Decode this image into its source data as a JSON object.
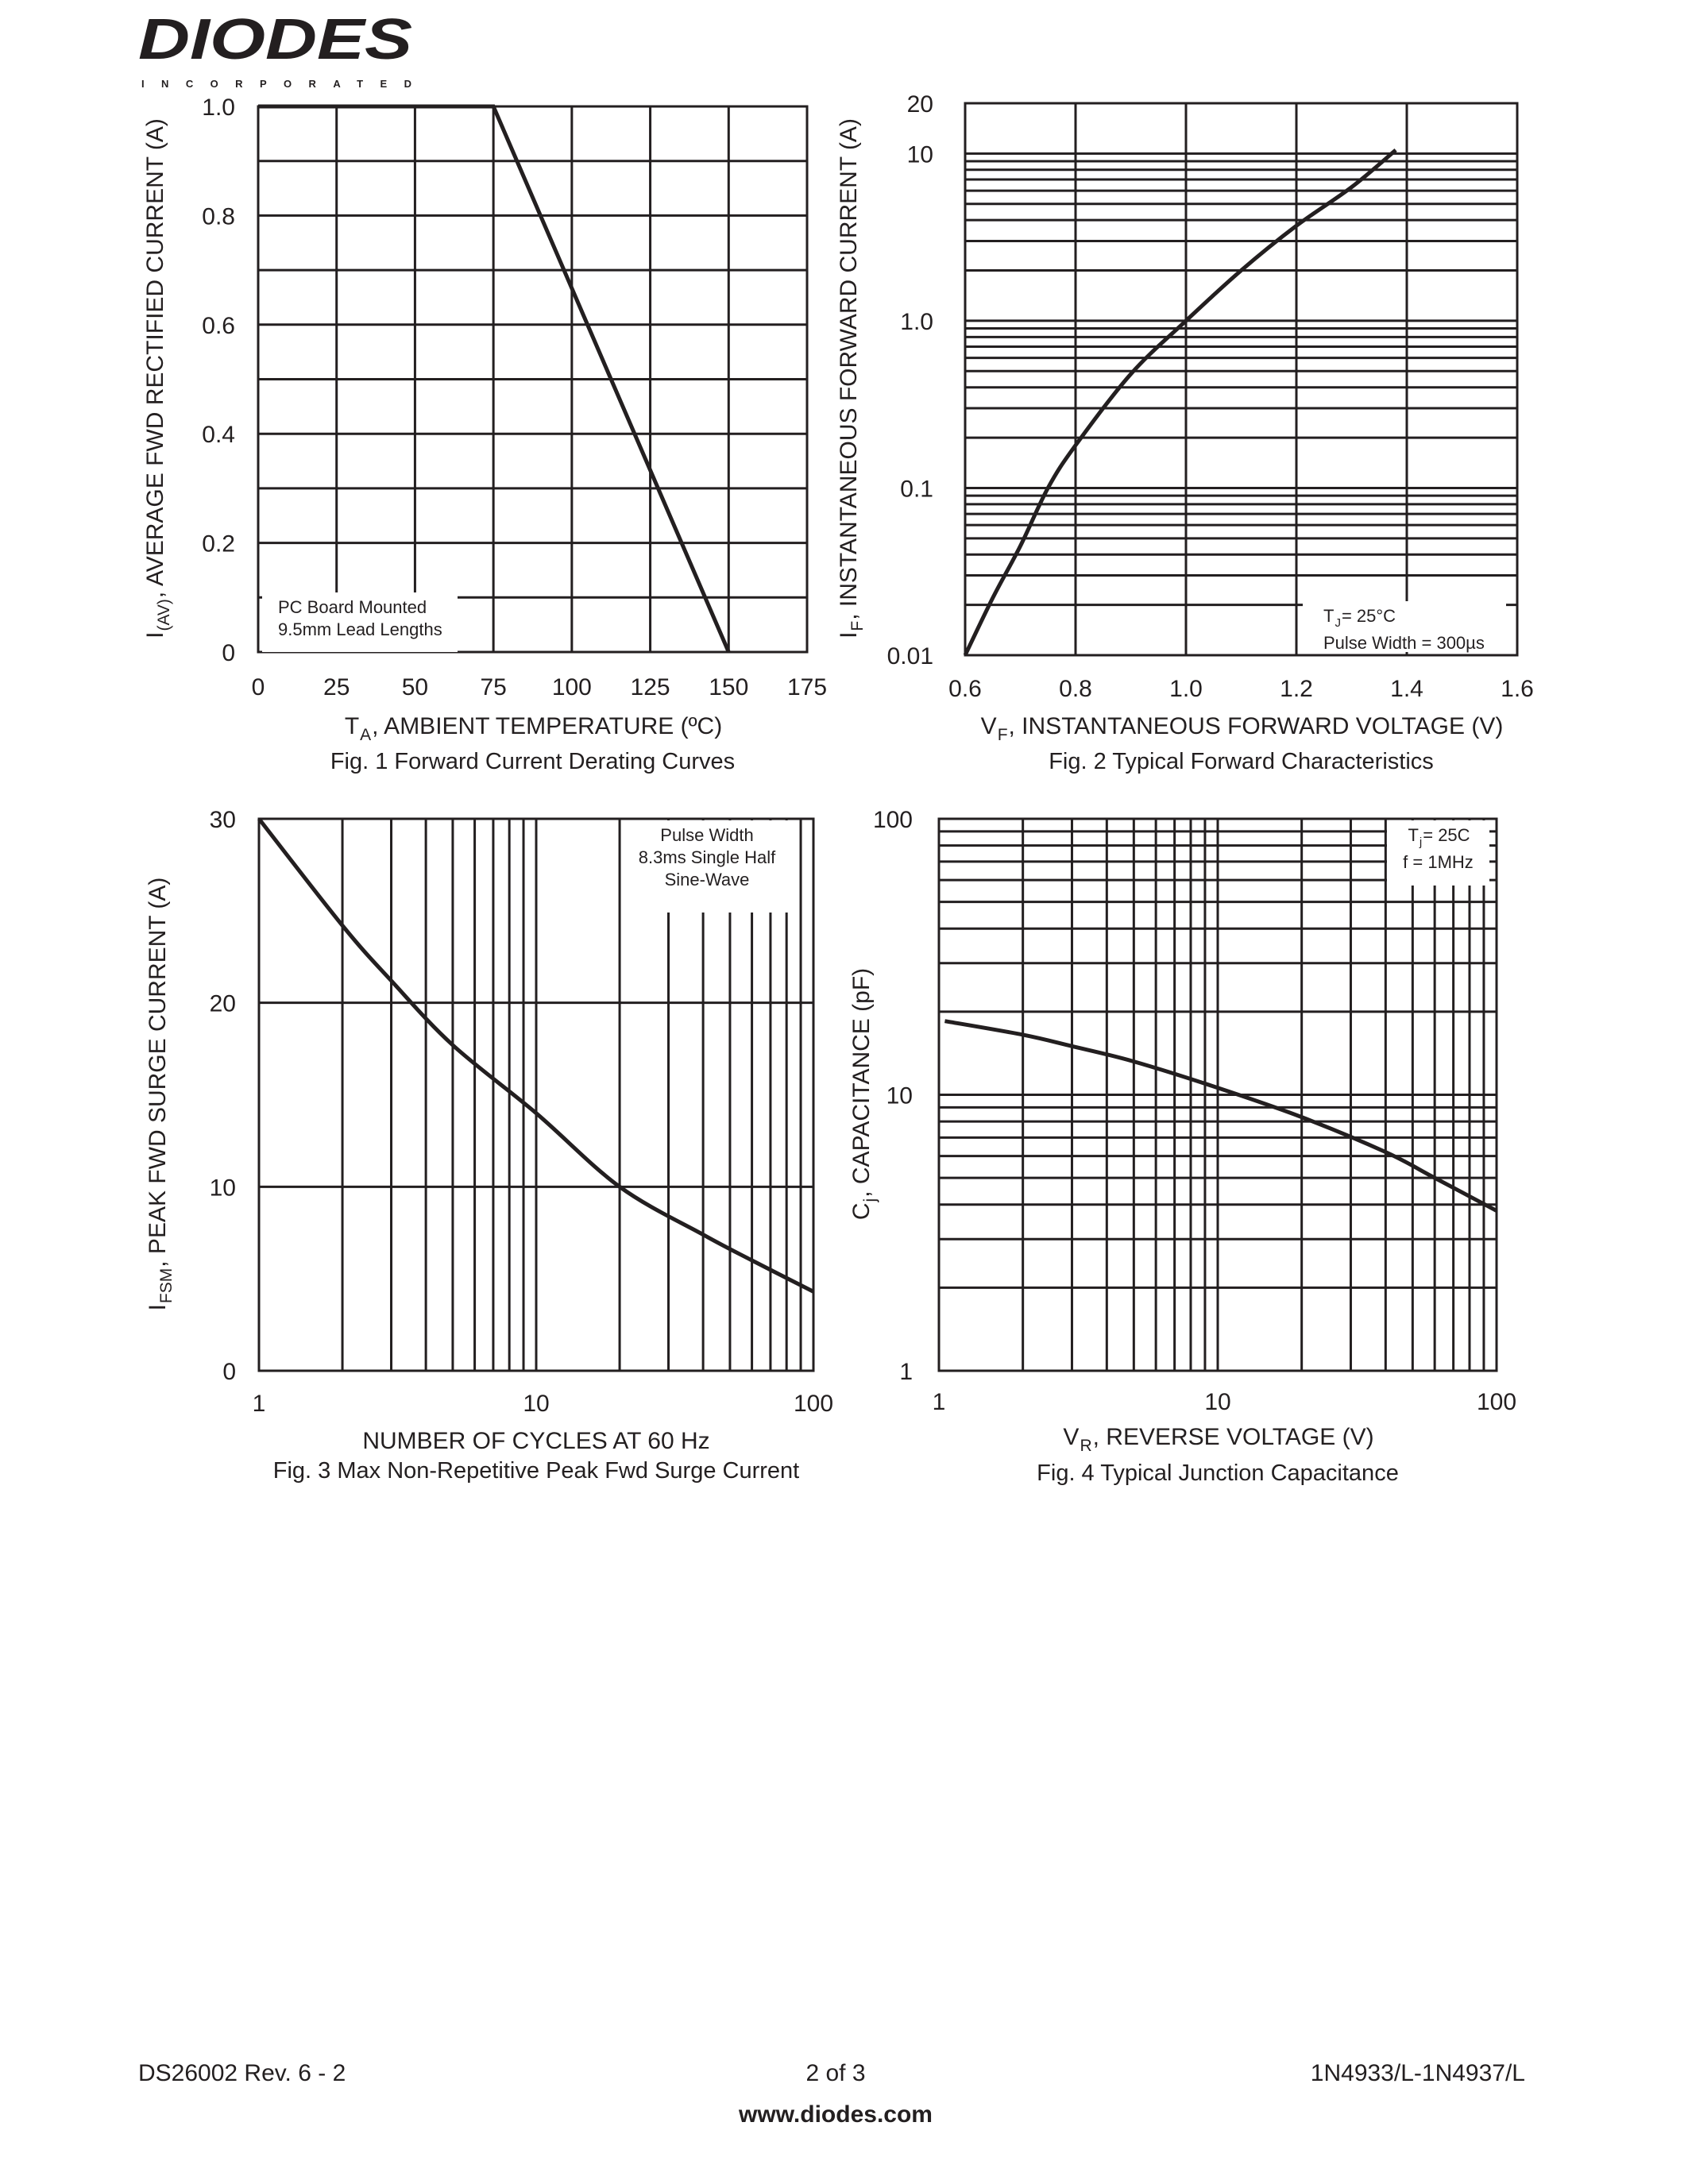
{
  "header": {
    "logo_text": "DIODES",
    "logo_subtext": "INCORPORATED"
  },
  "footer": {
    "doc_id": "DS26002 Rev. 6 - 2",
    "page": "2 of 3",
    "part": "1N4933/L-1N4937/L",
    "website": "www.diodes.com"
  },
  "colors": {
    "ink": "#231f20",
    "background": "#ffffff"
  },
  "chart_data": [
    {
      "type": "line",
      "title": "Fig. 1  Forward Current Derating Curves",
      "xlabel": {
        "main": "T",
        "sub": "A",
        "rest": ", AMBIENT TEMPERATURE (ºC)"
      },
      "ylabel": {
        "main": "I",
        "sub": "(AV)",
        "rest": ", AVERAGE FWD RECTIFIED CURRENT (A)"
      },
      "xscale": "linear",
      "yscale": "linear",
      "xlim": [
        0,
        175
      ],
      "ylim": [
        0,
        1.0
      ],
      "xgrid": [
        0,
        25,
        50,
        75,
        100,
        125,
        150,
        175
      ],
      "ygrid": [
        0,
        0.1,
        0.2,
        0.3,
        0.4,
        0.5,
        0.6,
        0.7,
        0.8,
        0.9,
        1.0
      ],
      "xticks": [
        0,
        25,
        50,
        75,
        100,
        125,
        150,
        175
      ],
      "xtick_labels": [
        "0",
        "25",
        "50",
        "75",
        "100",
        "125",
        "150",
        "175"
      ],
      "yticks": [
        0,
        0.2,
        0.4,
        0.6,
        0.8,
        1.0
      ],
      "ytick_labels": [
        "0",
        "0.2",
        "0.4",
        "0.6",
        "0.8",
        "1.0"
      ],
      "grid": true,
      "annotation": [
        "PC Board Mounted",
        "9.5mm Lead Lengths"
      ],
      "annotation_position": "bottom-left",
      "series": [
        {
          "x": [
            0,
            75,
            150
          ],
          "y": [
            1.0,
            1.0,
            0
          ]
        }
      ]
    },
    {
      "type": "line",
      "title": "Fig. 2  Typical Forward Characteristics",
      "xlabel": {
        "main": "V",
        "sub": "F",
        "rest": ", INSTANTANEOUS FORWARD VOLTAGE (V)"
      },
      "ylabel": {
        "main": "I",
        "sub": "F",
        "rest": ", INSTANTANEOUS FORWARD CURRENT (A)"
      },
      "xscale": "linear",
      "yscale": "log",
      "xlim": [
        0.6,
        1.6
      ],
      "ylim": [
        0.01,
        20
      ],
      "xgrid": [
        0.6,
        0.8,
        1.0,
        1.2,
        1.4,
        1.6
      ],
      "xticks": [
        0.6,
        0.8,
        1.0,
        1.2,
        1.4,
        1.6
      ],
      "xtick_labels": [
        "0.6",
        "0.8",
        "1.0",
        "1.2",
        "1.4",
        "1.6"
      ],
      "yticks": [
        0.01,
        0.1,
        1.0,
        10,
        20
      ],
      "ytick_labels": [
        "0.01",
        "0.1",
        "1.0",
        "10",
        "20"
      ],
      "grid": true,
      "annotation": [
        "T",
        "J",
        " = 25°C",
        "Pulse Width = 300µs"
      ],
      "annotation_position": "bottom-right",
      "series": [
        {
          "x": [
            0.6,
            0.65,
            0.7,
            0.75,
            0.8,
            0.9,
            1.0,
            1.1,
            1.2,
            1.3,
            1.38
          ],
          "y": [
            0.01,
            0.022,
            0.045,
            0.1,
            0.18,
            0.48,
            1.0,
            2.0,
            3.7,
            6.3,
            10.5
          ]
        }
      ]
    },
    {
      "type": "line",
      "title": "Fig. 3 Max Non-Repetitive Peak Fwd Surge Current",
      "xlabel": {
        "main": "NUMBER OF CYCLES AT 60 Hz",
        "sub": "",
        "rest": ""
      },
      "ylabel": {
        "main": "I",
        "sub": "FSM",
        "rest": ", PEAK FWD SURGE CURRENT (A)"
      },
      "xscale": "log",
      "yscale": "linear",
      "xlim": [
        1,
        100
      ],
      "ylim": [
        0,
        30
      ],
      "ygrid": [
        0,
        10,
        20,
        30
      ],
      "xticks": [
        1,
        10,
        100
      ],
      "xtick_labels": [
        "1",
        "10",
        "100"
      ],
      "yticks": [
        0,
        10,
        20,
        30
      ],
      "ytick_labels": [
        "0",
        "10",
        "20",
        "30"
      ],
      "grid": true,
      "annotation": [
        "Pulse Width",
        "8.3ms Single Half",
        "Sine-Wave"
      ],
      "annotation_position": "top-right",
      "series": [
        {
          "x": [
            1,
            2,
            3,
            5,
            10,
            20,
            40,
            60,
            100
          ],
          "y": [
            30,
            24.2,
            21.2,
            17.7,
            14.0,
            10.0,
            7.4,
            6.0,
            4.3
          ]
        }
      ]
    },
    {
      "type": "line",
      "title": "Fig. 4  Typical Junction Capacitance",
      "xlabel": {
        "main": "V",
        "sub": "R",
        "rest": ", REVERSE VOLTAGE (V)"
      },
      "ylabel": {
        "main": "C",
        "sub": "j",
        "rest": ", CAPACITANCE (pF)"
      },
      "xscale": "log",
      "yscale": "log",
      "xlim": [
        1,
        100
      ],
      "ylim": [
        1,
        100
      ],
      "xticks": [
        1,
        10,
        100
      ],
      "xtick_labels": [
        "1",
        "10",
        "100"
      ],
      "yticks": [
        1,
        10,
        100
      ],
      "ytick_labels": [
        "1",
        "10",
        "100"
      ],
      "grid": true,
      "annotation": [
        "T",
        "j",
        " = 25C",
        "f = 1MHz"
      ],
      "annotation_position": "top-right",
      "series": [
        {
          "x": [
            1.05,
            2,
            3,
            5,
            10,
            20,
            40,
            60,
            100
          ],
          "y": [
            18.5,
            16.5,
            15.0,
            13.2,
            10.6,
            8.3,
            6.2,
            5.0,
            3.8
          ]
        }
      ]
    }
  ]
}
